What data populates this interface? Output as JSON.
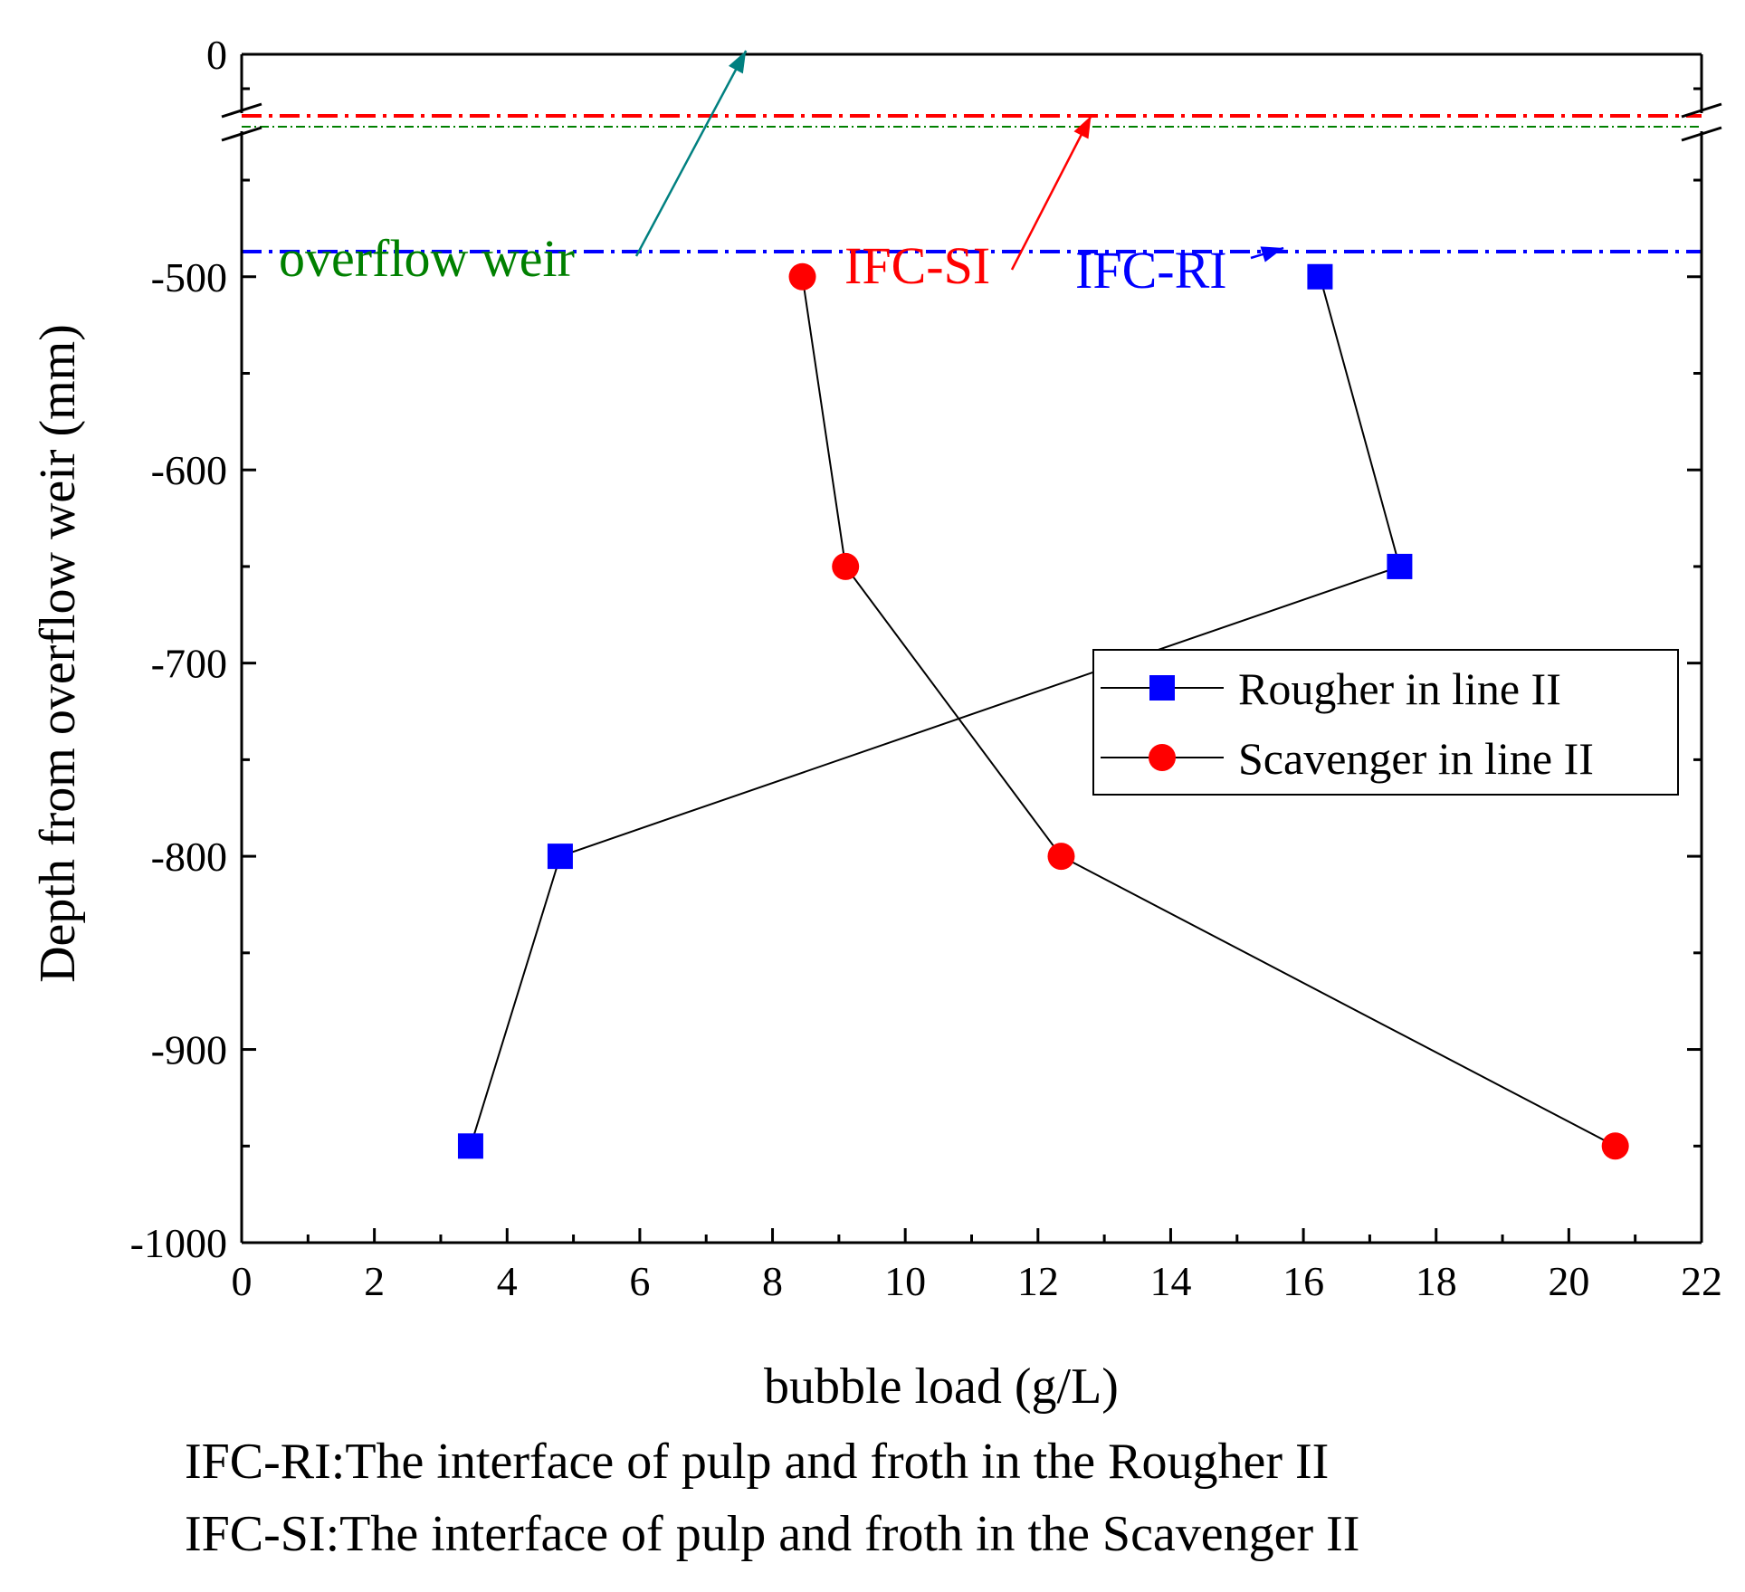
{
  "chart_data": {
    "type": "line",
    "title": "",
    "xlabel": "bubble load (g/L)",
    "ylabel": "Depth from overflow weir (mm)",
    "xlim": [
      0,
      22
    ],
    "ylim_lower": [
      -1000,
      -420
    ],
    "ylim_upper": [
      -35,
      0
    ],
    "axis_break_at": -420,
    "x_ticks": [
      "0",
      "2",
      "4",
      "6",
      "8",
      "10",
      "12",
      "14",
      "16",
      "18",
      "20",
      "22"
    ],
    "y_ticks": [
      "0",
      "-500",
      "-600",
      "-700",
      "-800",
      "-900",
      "-1000"
    ],
    "legend_position": "middle-right",
    "series": [
      {
        "name": "Rougher in line II",
        "marker": "square",
        "color": "#0000ff",
        "points": [
          {
            "x": 3.45,
            "y": -950
          },
          {
            "x": 4.8,
            "y": -800
          },
          {
            "x": 17.45,
            "y": -650
          },
          {
            "x": 16.25,
            "y": -500
          }
        ]
      },
      {
        "name": "Scavenger in line II",
        "marker": "circle",
        "color": "#ff0000",
        "points": [
          {
            "x": 20.7,
            "y": -950
          },
          {
            "x": 12.35,
            "y": -800
          },
          {
            "x": 9.1,
            "y": -650
          },
          {
            "x": 8.45,
            "y": -500
          }
        ]
      }
    ],
    "reference_lines": [
      {
        "name": "IFC-SI",
        "label": "IFC-SI",
        "y": -30,
        "color": "#ff0000",
        "style": "dashdot"
      },
      {
        "name": "overflow weir",
        "label": "overflow weir",
        "y": -37,
        "color": "#008000",
        "style": "dashdot-thin"
      },
      {
        "name": "IFC-RI",
        "label": "IFC-RI",
        "y": -487,
        "color": "#0000ff",
        "style": "dashdot"
      }
    ],
    "annotations": [
      {
        "label_ref": "overflow weir",
        "color": "#008080",
        "arrow_to": {
          "x": 7.6,
          "y": 0
        }
      },
      {
        "label_ref": "IFC-SI",
        "color": "#ff0000",
        "arrow_to": {
          "x": 12.8,
          "y": -30
        }
      },
      {
        "label_ref": "IFC-RI",
        "color": "#0000ff",
        "arrow_to": {
          "x": 15.7,
          "y": -487
        }
      }
    ]
  },
  "footnotes": [
    "IFC-RI:The interface of pulp and froth in the Rougher II",
    "IFC-SI:The interface of pulp and froth in the Scavenger II"
  ]
}
